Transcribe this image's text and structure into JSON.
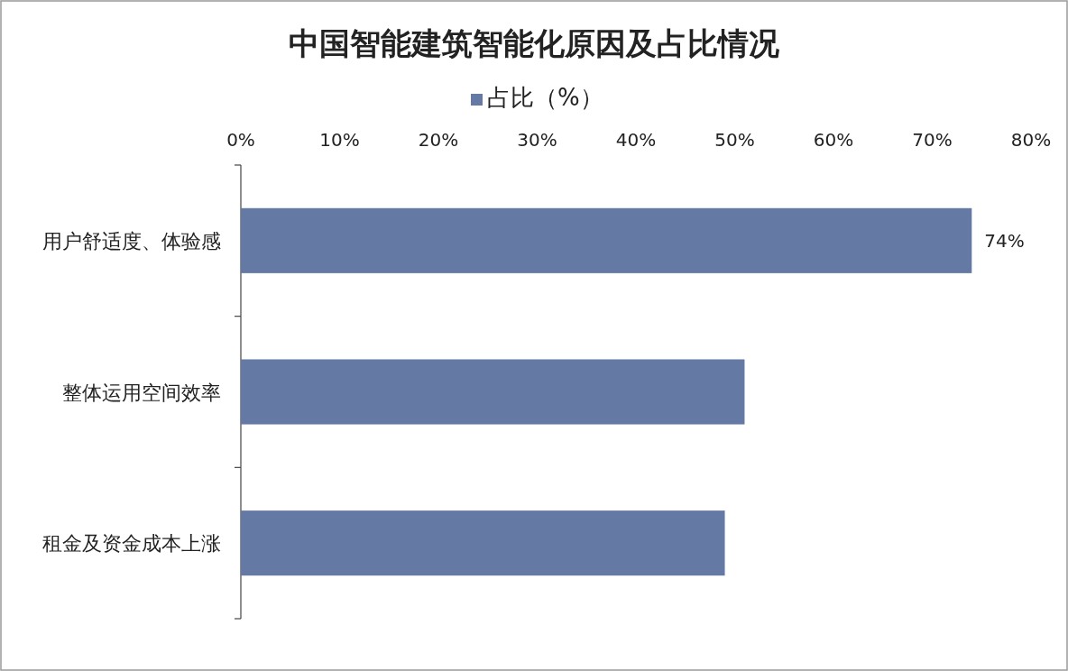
{
  "chart_data": {
    "type": "bar",
    "orientation": "horizontal",
    "title": "中国智能建筑智能化原因及占比情况",
    "categories": [
      "用户舒适度、体验感",
      "整体运用空间效率",
      "租金及资金成本上涨"
    ],
    "series": [
      {
        "name": "占比（%）",
        "color": "#6479a3",
        "values": [
          74,
          51,
          49
        ],
        "value_labels": [
          "74%",
          null,
          null
        ]
      }
    ],
    "xlim": [
      0,
      80
    ],
    "xticks": [
      {
        "value": 0,
        "label": "0%"
      },
      {
        "value": 10,
        "label": "10%"
      },
      {
        "value": 20,
        "label": "20%"
      },
      {
        "value": 30,
        "label": "30%"
      },
      {
        "value": 40,
        "label": "40%"
      },
      {
        "value": 50,
        "label": "50%"
      },
      {
        "value": 60,
        "label": "60%"
      },
      {
        "value": 70,
        "label": "70%"
      },
      {
        "value": 80,
        "label": "80%"
      }
    ],
    "legend": "top",
    "grid": false
  }
}
